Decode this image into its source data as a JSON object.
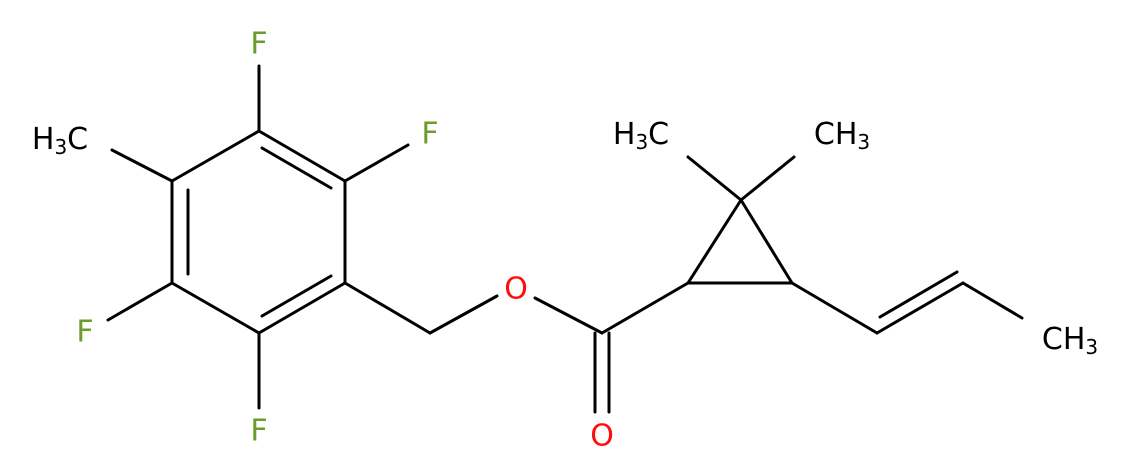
{
  "atoms": [
    {
      "label": "F"
    },
    {
      "label": "F"
    },
    {
      "label": "F"
    },
    {
      "label": "F"
    },
    {
      "parts": [
        "H",
        "3",
        "C"
      ]
    },
    {
      "label": "O"
    },
    {
      "label": "O"
    },
    {
      "parts": [
        "H",
        "3",
        "C"
      ]
    },
    {
      "parts": [
        "C",
        "H",
        "3"
      ]
    },
    {
      "parts": [
        "C",
        "H",
        "3"
      ]
    }
  ]
}
